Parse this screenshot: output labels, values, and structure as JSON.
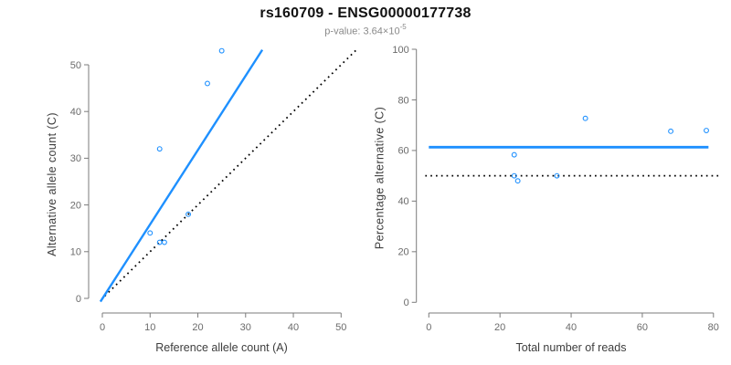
{
  "figure": {
    "title": "rs160709 - ENSG00000177738",
    "subtitle_base": "p-value: 3.64×10",
    "subtitle_exponent": "-5",
    "theme": {
      "accent_blue": "#1E90FF",
      "reference_black": "#000000",
      "axis_line": "#7b7b7b",
      "tick_label": "#6b6b6b",
      "axis_label": "#3d3d3d"
    }
  },
  "chart_data": [
    {
      "id": "allele-counts-panel",
      "type": "scatter",
      "title": "",
      "xlabel": "Reference allele count (A)",
      "ylabel": "Alternative allele count (C)",
      "xlim": [
        0,
        50
      ],
      "ylim": [
        0,
        50
      ],
      "xticks": [
        0,
        10,
        20,
        30,
        40,
        50
      ],
      "yticks": [
        0,
        10,
        20,
        30,
        40,
        50
      ],
      "grid": false,
      "legend": false,
      "points": [
        [
          10,
          14
        ],
        [
          12,
          12
        ],
        [
          13,
          12
        ],
        [
          12,
          32
        ],
        [
          18,
          18
        ],
        [
          22,
          46
        ],
        [
          25,
          53
        ]
      ],
      "lines": [
        {
          "name": "identity-line",
          "style": "dotted",
          "color": "#000000",
          "width": 1.8,
          "from": [
            0.5,
            0.5
          ],
          "to": [
            53.2,
            53.2
          ]
        },
        {
          "name": "fit-line",
          "style": "solid",
          "color": "#1E90FF",
          "width": 2.4,
          "from": [
            -0.4,
            -0.7
          ],
          "to": [
            33.5,
            53.2
          ]
        }
      ]
    },
    {
      "id": "percentage-alternative-panel",
      "type": "scatter",
      "title": "",
      "xlabel": "Total number of reads",
      "ylabel": "Percentage alternative (C)",
      "xlim": [
        0,
        80
      ],
      "ylim": [
        0,
        100
      ],
      "xticks": [
        0,
        20,
        40,
        60,
        80
      ],
      "yticks": [
        0,
        20,
        40,
        60,
        80,
        100
      ],
      "grid": false,
      "legend": false,
      "points": [
        [
          24,
          58.3
        ],
        [
          24,
          50
        ],
        [
          25,
          48
        ],
        [
          36,
          50
        ],
        [
          44,
          72.7
        ],
        [
          68,
          67.6
        ],
        [
          78,
          67.9
        ]
      ],
      "lines": [
        {
          "name": "reference-line",
          "style": "dotted",
          "color": "#000000",
          "width": 1.8,
          "from": [
            -1,
            50
          ],
          "to": [
            81.7,
            50
          ]
        },
        {
          "name": "fit-line",
          "style": "solid",
          "color": "#1E90FF",
          "width": 2.8,
          "from": [
            0,
            61.3
          ],
          "to": [
            78.6,
            61.3
          ]
        }
      ]
    }
  ]
}
